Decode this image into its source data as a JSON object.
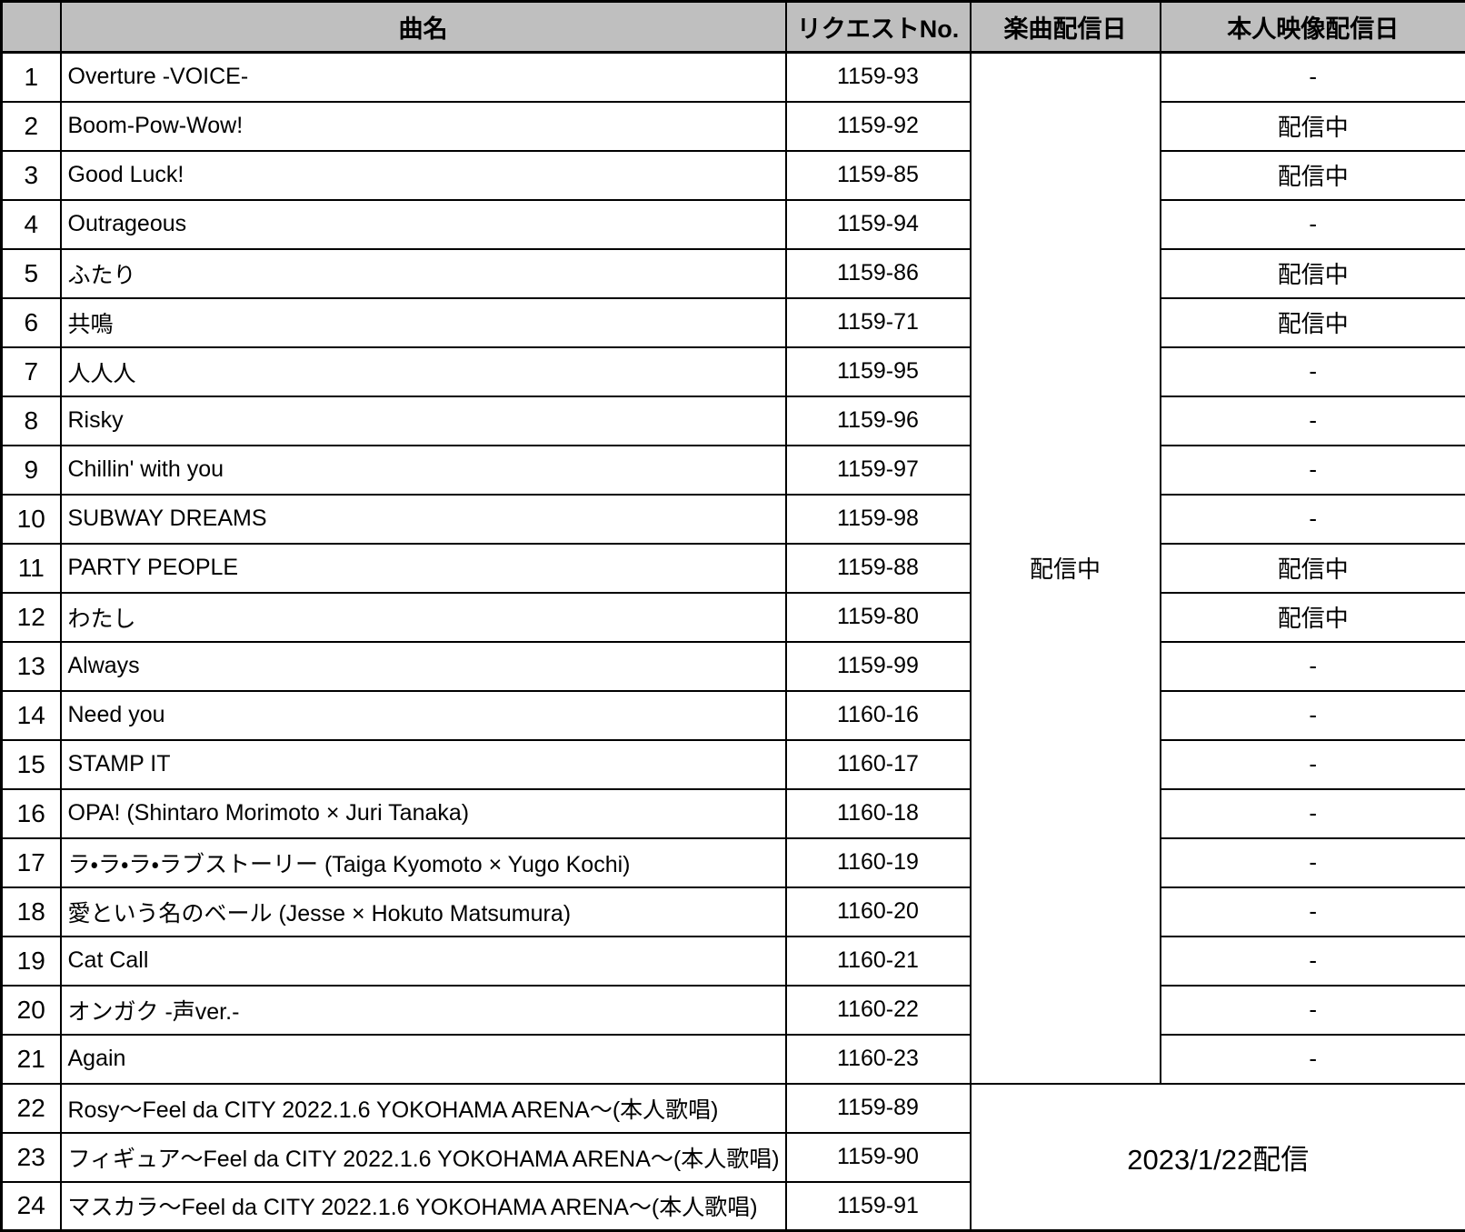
{
  "table": {
    "headers": {
      "num": "",
      "title": "曲名",
      "request_no": "リクエストNo.",
      "song_date": "楽曲配信日",
      "video_date": "本人映像配信日"
    },
    "merged": {
      "song_date_status": "配信中",
      "rows_22_24_date": "2023/1/22配信"
    },
    "rows": [
      {
        "num": "1",
        "title": "Overture -VOICE-",
        "request_no": "1159-93",
        "video_date": "-"
      },
      {
        "num": "2",
        "title": "Boom-Pow-Wow!",
        "request_no": "1159-92",
        "video_date": "配信中"
      },
      {
        "num": "3",
        "title": "Good Luck!",
        "request_no": "1159-85",
        "video_date": "配信中"
      },
      {
        "num": "4",
        "title": "Outrageous",
        "request_no": "1159-94",
        "video_date": "-"
      },
      {
        "num": "5",
        "title": "ふたり",
        "request_no": "1159-86",
        "video_date": "配信中"
      },
      {
        "num": "6",
        "title": "共鳴",
        "request_no": "1159-71",
        "video_date": "配信中"
      },
      {
        "num": "7",
        "title": "人人人",
        "request_no": "1159-95",
        "video_date": "-"
      },
      {
        "num": "8",
        "title": "Risky",
        "request_no": "1159-96",
        "video_date": "-"
      },
      {
        "num": "9",
        "title": "Chillin' with you",
        "request_no": "1159-97",
        "video_date": "-"
      },
      {
        "num": "10",
        "title": "SUBWAY DREAMS",
        "request_no": "1159-98",
        "video_date": "-"
      },
      {
        "num": "11",
        "title": "PARTY PEOPLE",
        "request_no": "1159-88",
        "video_date": "配信中"
      },
      {
        "num": "12",
        "title": "わたし",
        "request_no": "1159-80",
        "video_date": "配信中"
      },
      {
        "num": "13",
        "title": "Always",
        "request_no": "1159-99",
        "video_date": "-"
      },
      {
        "num": "14",
        "title": "Need you",
        "request_no": "1160-16",
        "video_date": "-"
      },
      {
        "num": "15",
        "title": "STAMP IT",
        "request_no": "1160-17",
        "video_date": "-"
      },
      {
        "num": "16",
        "title": "OPA! (Shintaro Morimoto × Juri Tanaka)",
        "request_no": "1160-18",
        "video_date": "-"
      },
      {
        "num": "17",
        "title": "ラ・ラ・ラ・ラブストーリー (Taiga Kyomoto × Yugo Kochi)",
        "request_no": "1160-19",
        "video_date": "-"
      },
      {
        "num": "18",
        "title": "愛という名のベール (Jesse × Hokuto Matsumura)",
        "request_no": "1160-20",
        "video_date": "-"
      },
      {
        "num": "19",
        "title": "Cat Call",
        "request_no": "1160-21",
        "video_date": "-"
      },
      {
        "num": "20",
        "title": "オンガク -声ver.-",
        "request_no": "1160-22",
        "video_date": "-"
      },
      {
        "num": "21",
        "title": "Again",
        "request_no": "1160-23",
        "video_date": "-"
      },
      {
        "num": "22",
        "title": "Rosy～Feel da CITY 2022.1.6 YOKOHAMA ARENA～(本人歌唱)",
        "request_no": "1159-89"
      },
      {
        "num": "23",
        "title": "フィギュア～Feel da CITY 2022.1.6 YOKOHAMA ARENA～(本人歌唱)",
        "request_no": "1159-90"
      },
      {
        "num": "24",
        "title": "マスカラ～Feel da CITY 2022.1.6 YOKOHAMA ARENA～(本人歌唱)",
        "request_no": "1159-91"
      }
    ]
  },
  "colors": {
    "header_bg": "#bfbfbf",
    "border": "#000000",
    "cell_bg": "#ffffff"
  }
}
